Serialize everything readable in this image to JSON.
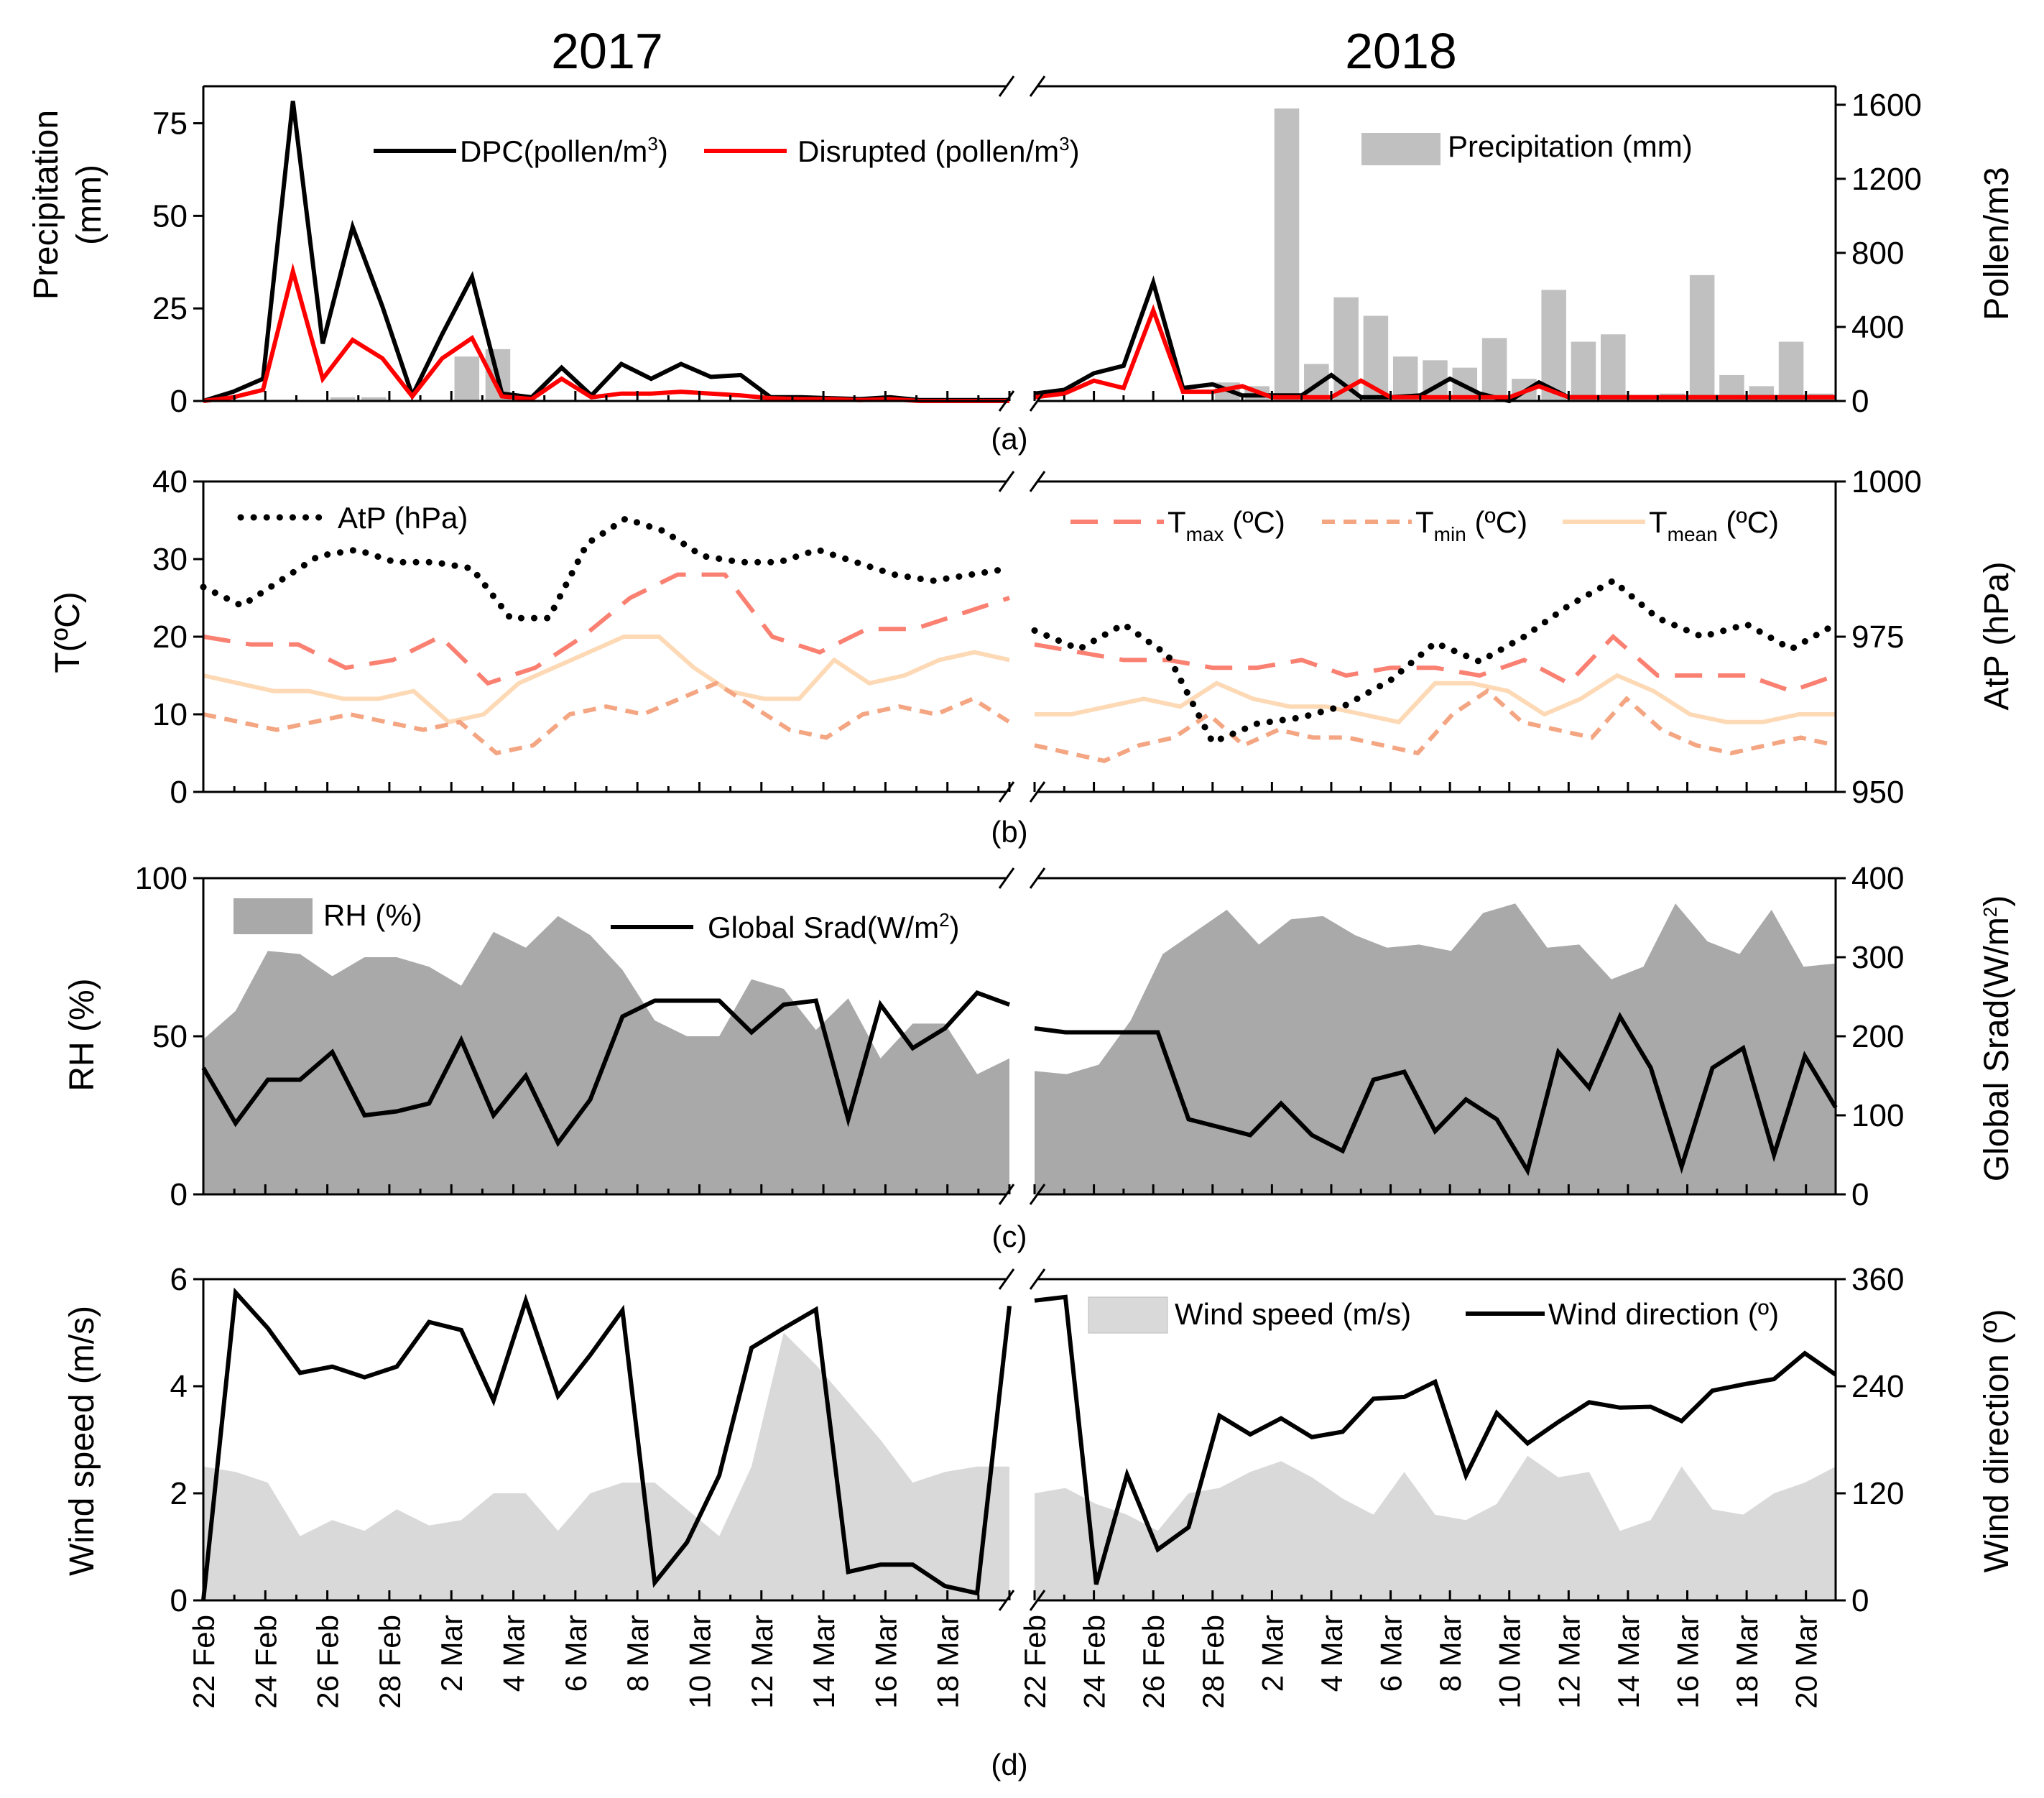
{
  "chart_data": [
    {
      "id": "a",
      "type": "line",
      "titles": [
        "2017",
        "2018"
      ],
      "panel_label": "(a)",
      "ylabel_left": [
        "Precipitation",
        "(mm)"
      ],
      "ylabel_right": "Pollen/m3",
      "ylim_left": [
        0,
        85
      ],
      "ylim_right": [
        0,
        1700
      ],
      "yticks_left": [
        0,
        25,
        50,
        75
      ],
      "yticks_right": [
        0,
        400,
        800,
        1200,
        1600
      ],
      "legend": {
        "dpc": {
          "text": "DPC(pollen/m",
          "sup": "3",
          "close": ")"
        },
        "disrupted": {
          "text": "Disrupted (pollen/m",
          "sup": "3",
          "close": ")"
        },
        "precip": "Precipitation (mm)"
      },
      "series": [
        {
          "name": "DPC(pollen/m3)",
          "axis": "right",
          "color": "#000000",
          "y2017": [
            0,
            50,
            120,
            1620,
            310,
            940,
            510,
            30,
            360,
            670,
            40,
            20,
            180,
            30,
            200,
            120,
            200,
            130,
            140,
            20,
            20,
            15,
            10,
            20,
            5,
            5,
            5,
            5
          ],
          "y2018": [
            40,
            60,
            150,
            190,
            640,
            70,
            90,
            30,
            30,
            30,
            140,
            20,
            20,
            30,
            120,
            40,
            0,
            100,
            20,
            20,
            20,
            20,
            20,
            20,
            20,
            20,
            20,
            20
          ]
        },
        {
          "name": "Disrupted (pollen/m3)",
          "axis": "right",
          "color": "#ff0000",
          "y2017": [
            0,
            20,
            60,
            700,
            120,
            330,
            230,
            25,
            230,
            340,
            25,
            10,
            120,
            20,
            40,
            40,
            50,
            40,
            30,
            15,
            10,
            10,
            5,
            10,
            0,
            0,
            0,
            0
          ],
          "y2018": [
            20,
            40,
            110,
            70,
            490,
            50,
            50,
            80,
            20,
            20,
            20,
            110,
            20,
            20,
            20,
            20,
            20,
            80,
            20,
            20,
            20,
            20,
            20,
            20,
            20,
            20,
            20,
            20
          ]
        },
        {
          "name": "Precipitation (mm)",
          "axis": "left",
          "color": "#c0c0c0",
          "y2017": [
            0,
            0,
            0,
            0,
            1,
            1,
            0,
            0,
            12,
            14,
            0,
            0,
            0,
            0,
            0,
            0,
            0,
            0,
            0,
            0,
            0,
            0,
            0,
            0,
            0,
            0,
            0
          ],
          "y2018": [
            0,
            0,
            0,
            0,
            0,
            0,
            5,
            4,
            79,
            10,
            28,
            23,
            12,
            11,
            9,
            17,
            6,
            30,
            16,
            18,
            1,
            2,
            34,
            7,
            4,
            16,
            2
          ]
        }
      ]
    },
    {
      "id": "b",
      "type": "line",
      "panel_label": "(b)",
      "ylabel_left": "T(ºC)",
      "ylabel_right": "AtP (hPa)",
      "ylim_left": [
        0,
        40
      ],
      "ylim_right": [
        950,
        1000
      ],
      "yticks_left": [
        0,
        10,
        20,
        30,
        40
      ],
      "yticks_right": [
        950,
        975,
        1000
      ],
      "legend": {
        "atp": "AtP (hPa)",
        "tmax": {
          "T": "T",
          "sub": "max",
          "unit": " (ºC)"
        },
        "tmin": {
          "T": "T",
          "sub": "min",
          "unit": " (ºC)"
        },
        "tmean": {
          "T": "T",
          "sub": "mean",
          "unit": " (ºC)"
        }
      },
      "series": [
        {
          "name": "AtP (hPa)",
          "axis": "right",
          "color": "#000000",
          "y2017": [
            983,
            980,
            984,
            988,
            989,
            987,
            987,
            986,
            978,
            978,
            990,
            994,
            992,
            988,
            987,
            987,
            989,
            987,
            985,
            984,
            985,
            986
          ],
          "y2018": [
            976,
            973,
            977,
            972,
            958,
            961,
            962,
            964,
            968,
            974,
            971,
            975,
            980,
            984,
            978,
            975,
            977,
            973,
            977
          ]
        },
        {
          "name": "Tmax (ºC)",
          "axis": "left",
          "color": "#fa8072",
          "y2017": [
            20,
            19,
            19,
            16,
            17,
            20,
            14,
            16,
            20,
            25,
            28,
            28,
            20,
            18,
            21,
            21,
            23,
            25
          ],
          "y2018": [
            19,
            18,
            17,
            17,
            16,
            16,
            17,
            15,
            16,
            16,
            15,
            17,
            14,
            20,
            15,
            15,
            15,
            13,
            15
          ]
        },
        {
          "name": "Tmin (ºC)",
          "axis": "left",
          "color": "#f4a582",
          "y2017": [
            10,
            9,
            8,
            9,
            10,
            9,
            8,
            9,
            5,
            6,
            10,
            11,
            10,
            12,
            14,
            11,
            8,
            7,
            10,
            11,
            10,
            12,
            9
          ],
          "y2018": [
            6,
            5,
            4,
            6,
            7,
            10,
            6,
            8,
            7,
            7,
            6,
            5,
            10,
            13,
            9,
            8,
            7,
            12,
            8,
            6,
            5,
            6,
            7,
            6
          ]
        },
        {
          "name": "Tmean (ºC)",
          "axis": "left",
          "color": "#fdd9b5",
          "y2017": [
            15,
            14,
            13,
            13,
            12,
            12,
            13,
            9,
            10,
            14,
            16,
            18,
            20,
            20,
            16,
            13,
            12,
            12,
            17,
            14,
            15,
            17,
            18,
            17
          ],
          "y2018": [
            10,
            10,
            11,
            12,
            11,
            14,
            12,
            11,
            11,
            10,
            9,
            14,
            14,
            13,
            10,
            12,
            15,
            13,
            10,
            9,
            9,
            10,
            10
          ]
        }
      ]
    },
    {
      "id": "c",
      "type": "area",
      "panel_label": "(c)",
      "ylabel_left": "RH (%)",
      "ylabel_right": {
        "text": "Global Srad(W/m",
        "sup": "2",
        "close": ")"
      },
      "ylim_left": [
        0,
        100
      ],
      "ylim_right": [
        0,
        400
      ],
      "yticks_left": [
        0,
        50,
        100
      ],
      "yticks_right": [
        0,
        100,
        200,
        300,
        400
      ],
      "legend": {
        "rh": "RH (%)",
        "srad": {
          "text": "Global Srad(W/m",
          "sup": "2",
          "close": ")"
        }
      },
      "series": [
        {
          "name": "RH (%)",
          "axis": "left",
          "color": "#a9a9a9",
          "y2017": [
            49,
            58,
            77,
            76,
            69,
            75,
            75,
            72,
            66,
            83,
            78,
            88,
            82,
            71,
            55,
            50,
            50,
            68,
            65,
            52,
            62,
            43,
            54,
            54,
            38,
            43
          ],
          "y2018": [
            39,
            38,
            41,
            55,
            76,
            83,
            90,
            79,
            87,
            88,
            82,
            78,
            79,
            77,
            89,
            92,
            78,
            79,
            68,
            72,
            92,
            80,
            76,
            90,
            72,
            73
          ]
        },
        {
          "name": "Global Srad(W/m2)",
          "axis": "right",
          "color": "#000000",
          "y2017": [
            160,
            90,
            145,
            145,
            180,
            100,
            105,
            115,
            195,
            100,
            150,
            65,
            120,
            225,
            245,
            245,
            245,
            205,
            240,
            245,
            95,
            240,
            185,
            210,
            255,
            240
          ],
          "y2018": [
            210,
            205,
            205,
            205,
            205,
            95,
            85,
            75,
            115,
            75,
            55,
            145,
            155,
            80,
            120,
            95,
            30,
            180,
            135,
            225,
            160,
            35,
            160,
            185,
            50,
            175,
            110
          ]
        }
      ]
    },
    {
      "id": "d",
      "type": "area",
      "panel_label": "(d)",
      "ylabel_left": "Wind speed (m/s)",
      "ylabel_right": "Wind direction (º)",
      "ylim_left": [
        0,
        6
      ],
      "ylim_right": [
        0,
        360
      ],
      "yticks_left": [
        0,
        2,
        4,
        6
      ],
      "yticks_right": [
        0,
        120,
        240,
        360
      ],
      "legend": {
        "ws": "Wind speed (m/s)",
        "wd": "Wind direction (º)"
      },
      "series": [
        {
          "name": "Wind speed (m/s)",
          "axis": "left",
          "color": "#d9d9d9",
          "y2017": [
            2.5,
            2.4,
            2.2,
            1.2,
            1.5,
            1.3,
            1.7,
            1.4,
            1.5,
            2.0,
            2.0,
            1.3,
            2.0,
            2.2,
            2.2,
            1.7,
            1.2,
            2.5,
            5.0,
            4.4,
            3.7,
            3.0,
            2.2,
            2.4,
            2.5,
            2.5
          ],
          "y2018": [
            2.0,
            2.1,
            1.8,
            1.6,
            1.3,
            2.0,
            2.1,
            2.4,
            2.6,
            2.3,
            1.9,
            1.6,
            2.4,
            1.6,
            1.5,
            1.8,
            2.7,
            2.3,
            2.4,
            1.3,
            1.5,
            2.5,
            1.7,
            1.6,
            2.0,
            2.2,
            2.5
          ]
        },
        {
          "name": "Wind direction (º)",
          "axis": "right",
          "color": "#000000",
          "y2017": [
            0,
            345,
            305,
            255,
            262,
            250,
            262,
            312,
            303,
            224,
            336,
            229,
            275,
            325,
            20,
            65,
            140,
            283,
            305,
            326,
            32,
            40,
            40,
            16,
            8,
            330
          ],
          "y2018": [
            336,
            340,
            18,
            141,
            57,
            82,
            207,
            186,
            204,
            183,
            189,
            226,
            228,
            245,
            140,
            210,
            176,
            200,
            222,
            216,
            217,
            201,
            235,
            242,
            248,
            277,
            253
          ]
        }
      ]
    }
  ],
  "x_axis": {
    "labels_2017": [
      "22 Feb",
      "24 Feb",
      "26 Feb",
      "28 Feb",
      "2 Mar",
      "4 Mar",
      "6 Mar",
      "8 Mar",
      "10 Mar",
      "12 Mar",
      "14 Mar",
      "16 Mar",
      "18 Mar"
    ],
    "labels_2018": [
      "22 Feb",
      "24 Feb",
      "26 Feb",
      "28 Feb",
      "2 Mar",
      "4 Mar",
      "6 Mar",
      "8 Mar",
      "10 Mar",
      "12 Mar",
      "14 Mar",
      "16 Mar",
      "18 Mar",
      "20 Mar"
    ]
  }
}
